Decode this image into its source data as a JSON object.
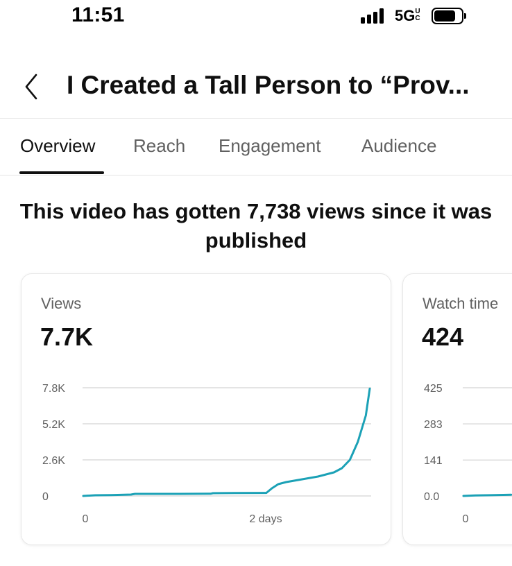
{
  "status_bar": {
    "time": "11:51",
    "network": "5G",
    "network_sup": "UC"
  },
  "header": {
    "back_icon": "chevron-left-icon",
    "title": "I Created a Tall Person to “Prov..."
  },
  "tabs": [
    {
      "label": "Overview",
      "active": true
    },
    {
      "label": "Reach",
      "active": false
    },
    {
      "label": "Engagement",
      "active": false
    },
    {
      "label": "Audience",
      "active": false
    }
  ],
  "headline": "This video has gotten 7,738 views since it was published",
  "colors": {
    "accent": "#1ba1b6",
    "text_primary": "#0f0f0f",
    "text_secondary": "#606060",
    "grid": "#dcdcdc"
  },
  "cards": [
    {
      "label": "Views",
      "value": "7.7K",
      "chart_data": {
        "type": "line",
        "y_tick_labels": [
          "7.8K",
          "5.2K",
          "2.6K",
          "0"
        ],
        "y_ticks": [
          7800,
          5200,
          2600,
          0
        ],
        "ylim": [
          0,
          7800
        ],
        "x_tick_labels": [
          "0",
          "2 days"
        ],
        "x_unit": "days",
        "xlim": [
          0,
          3.6
        ],
        "grid": true,
        "series": [
          {
            "x": [
              0,
              0.15,
              0.35,
              0.6,
              0.65,
              0.9,
              1.2,
              1.6,
              1.63,
              1.9,
              2.3,
              2.37,
              2.45,
              2.55,
              2.65,
              2.75,
              2.85,
              2.95,
              3.05,
              3.15,
              3.25,
              3.35,
              3.45,
              3.55,
              3.6
            ],
            "y": [
              0,
              50,
              60,
              100,
              150,
              150,
              150,
              160,
              200,
              210,
              220,
              550,
              850,
              1000,
              1100,
              1200,
              1300,
              1400,
              1550,
              1700,
              2000,
              2600,
              3900,
              5800,
              7738
            ]
          }
        ]
      }
    },
    {
      "label": "Watch time",
      "value": "424",
      "chart_data": {
        "type": "line",
        "y_tick_labels": [
          "425",
          "283",
          "141",
          "0.0"
        ],
        "y_ticks": [
          425,
          283,
          141,
          0
        ],
        "ylim": [
          0,
          425
        ],
        "x_tick_labels": [
          "0"
        ],
        "xlim": [
          0,
          3.6
        ],
        "grid": true,
        "series": [
          {
            "x": [
              0,
              0.15,
              0.35,
              0.6
            ],
            "y": [
              0,
              2,
              3,
              5
            ]
          }
        ]
      }
    }
  ]
}
